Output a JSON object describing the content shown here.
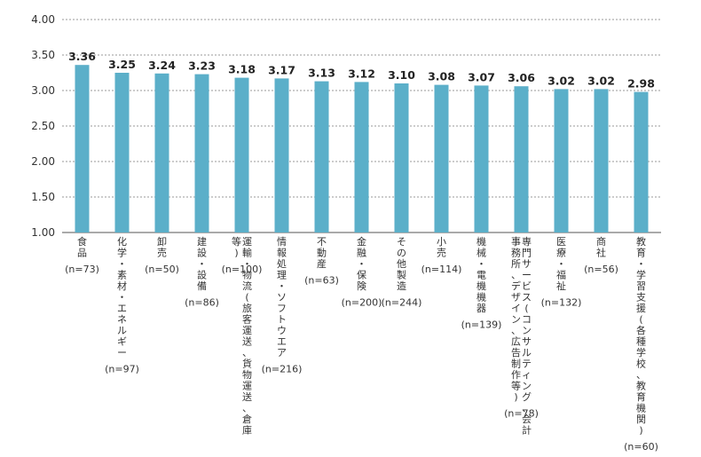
{
  "chart_data": {
    "type": "bar",
    "title": "",
    "xlabel": "",
    "ylabel": "",
    "ylim": [
      1.0,
      4.0
    ],
    "yticks": [
      "4.00",
      "3.50",
      "3.00",
      "2.50",
      "2.00",
      "1.50",
      "1.00"
    ],
    "grid": true,
    "bar_color": "#5bafc9",
    "categories": [
      {
        "label": "食品",
        "n": "(n=73)",
        "value": 3.36,
        "display": "3.36"
      },
      {
        "label": "化学・素材・エネルギー",
        "n": "(n=97)",
        "value": 3.25,
        "display": "3.25"
      },
      {
        "label": "卸売",
        "n": "(n=50)",
        "value": 3.24,
        "display": "3.24"
      },
      {
        "label": "建設・設備",
        "n": "(n=86)",
        "value": 3.23,
        "display": "3.23"
      },
      {
        "label": "運輸・物流(旅客運送、貨物運送、倉庫等)",
        "n": "(n=100)",
        "value": 3.18,
        "display": "3.18"
      },
      {
        "label": "情報処理・ソフトウエア",
        "n": "(n=216)",
        "value": 3.17,
        "display": "3.17"
      },
      {
        "label": "不動産",
        "n": "(n=63)",
        "value": 3.13,
        "display": "3.13"
      },
      {
        "label": "金融・保険",
        "n": "(n=200)",
        "value": 3.12,
        "display": "3.12"
      },
      {
        "label": "その他製造",
        "n": "(n=244)",
        "value": 3.1,
        "display": "3.10"
      },
      {
        "label": "小売",
        "n": "(n=114)",
        "value": 3.08,
        "display": "3.08"
      },
      {
        "label": "機械・電機機器",
        "n": "(n=139)",
        "value": 3.07,
        "display": "3.07"
      },
      {
        "label": "専門サービス(コンサルティング、会計事務所、デザイン、広告制作等)",
        "n": "(n=78)",
        "value": 3.06,
        "display": "3.06"
      },
      {
        "label": "医療・福祉",
        "n": "(n=132)",
        "value": 3.02,
        "display": "3.02"
      },
      {
        "label": "商社",
        "n": "(n=56)",
        "value": 3.02,
        "display": "3.02"
      },
      {
        "label": "教育・学習支援(各種学校、教育機関)",
        "n": "(n=60)",
        "value": 2.98,
        "display": "2.98"
      }
    ]
  }
}
